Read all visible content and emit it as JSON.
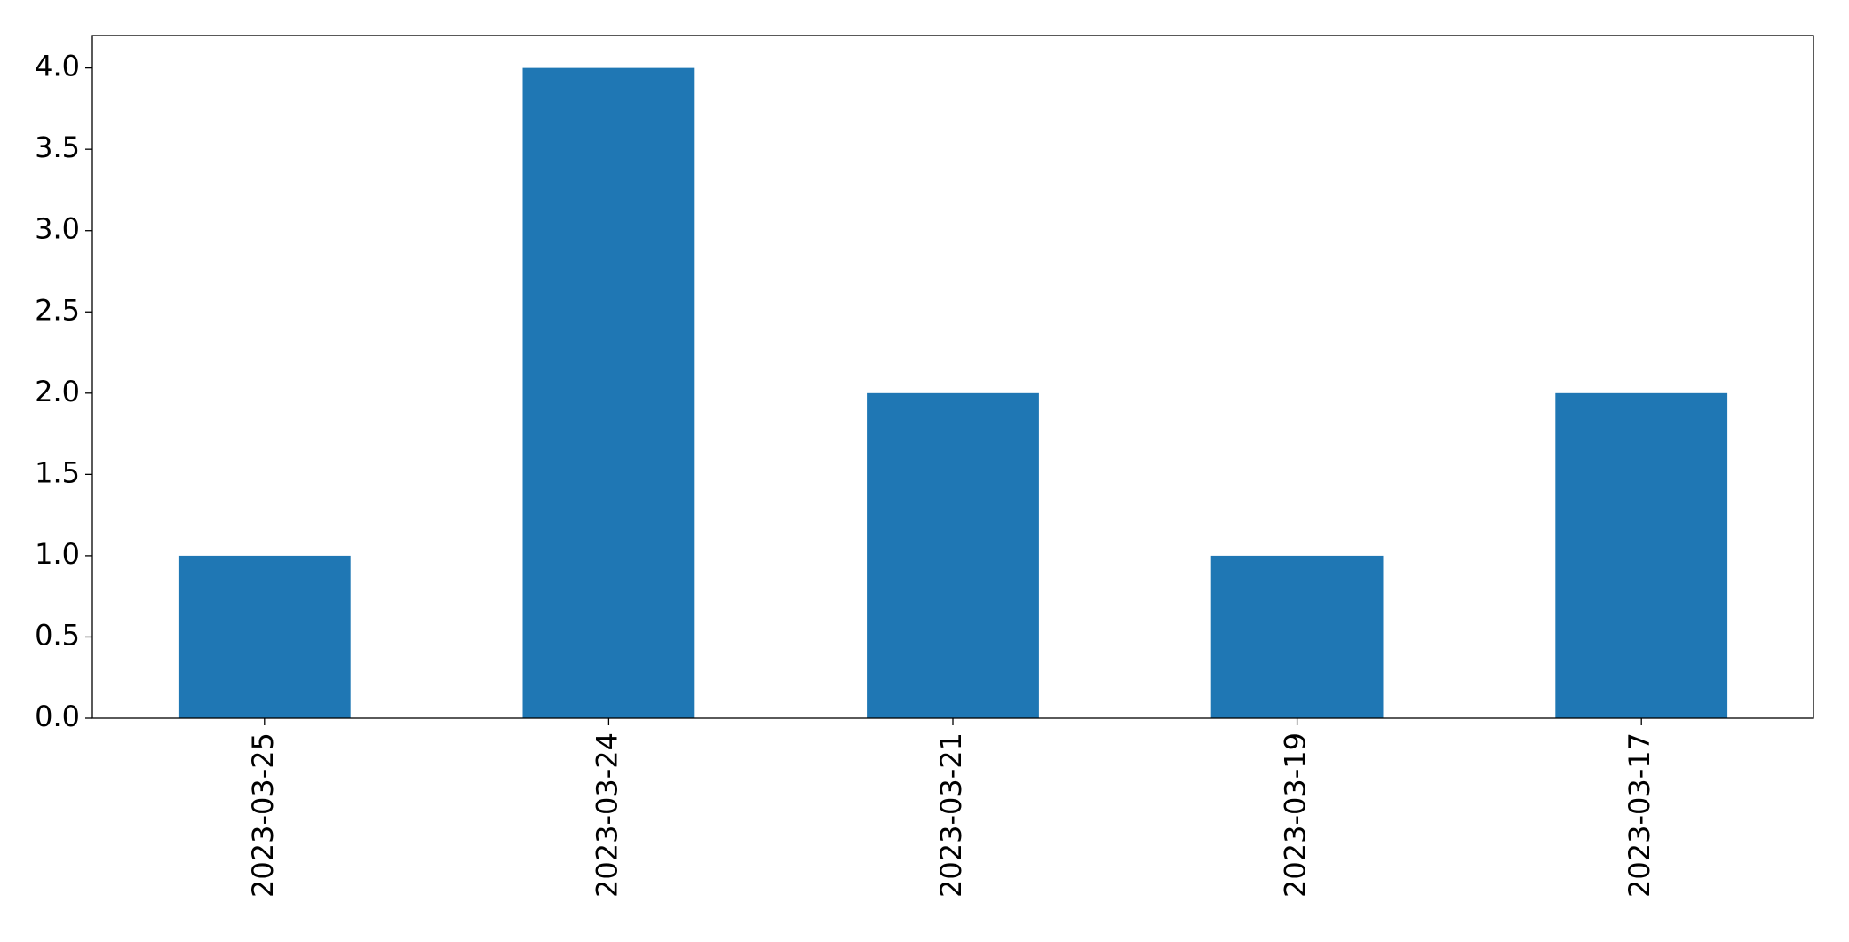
{
  "chart_data": {
    "type": "bar",
    "categories": [
      "2023-03-25",
      "2023-03-24",
      "2023-03-21",
      "2023-03-19",
      "2023-03-17"
    ],
    "values": [
      1,
      4,
      2,
      1,
      2
    ],
    "color": "#1f77b4",
    "ylim": [
      0,
      4.2
    ],
    "yticks": [
      {
        "value": 0,
        "label": "0.0"
      },
      0.5,
      {
        "value": 1,
        "label": "1.0"
      },
      1.5,
      {
        "value": 2,
        "label": "2.0"
      },
      2.5,
      {
        "value": 3,
        "label": "3.0"
      },
      3.5,
      {
        "value": 4,
        "label": "4.0"
      }
    ],
    "grid": false
  }
}
